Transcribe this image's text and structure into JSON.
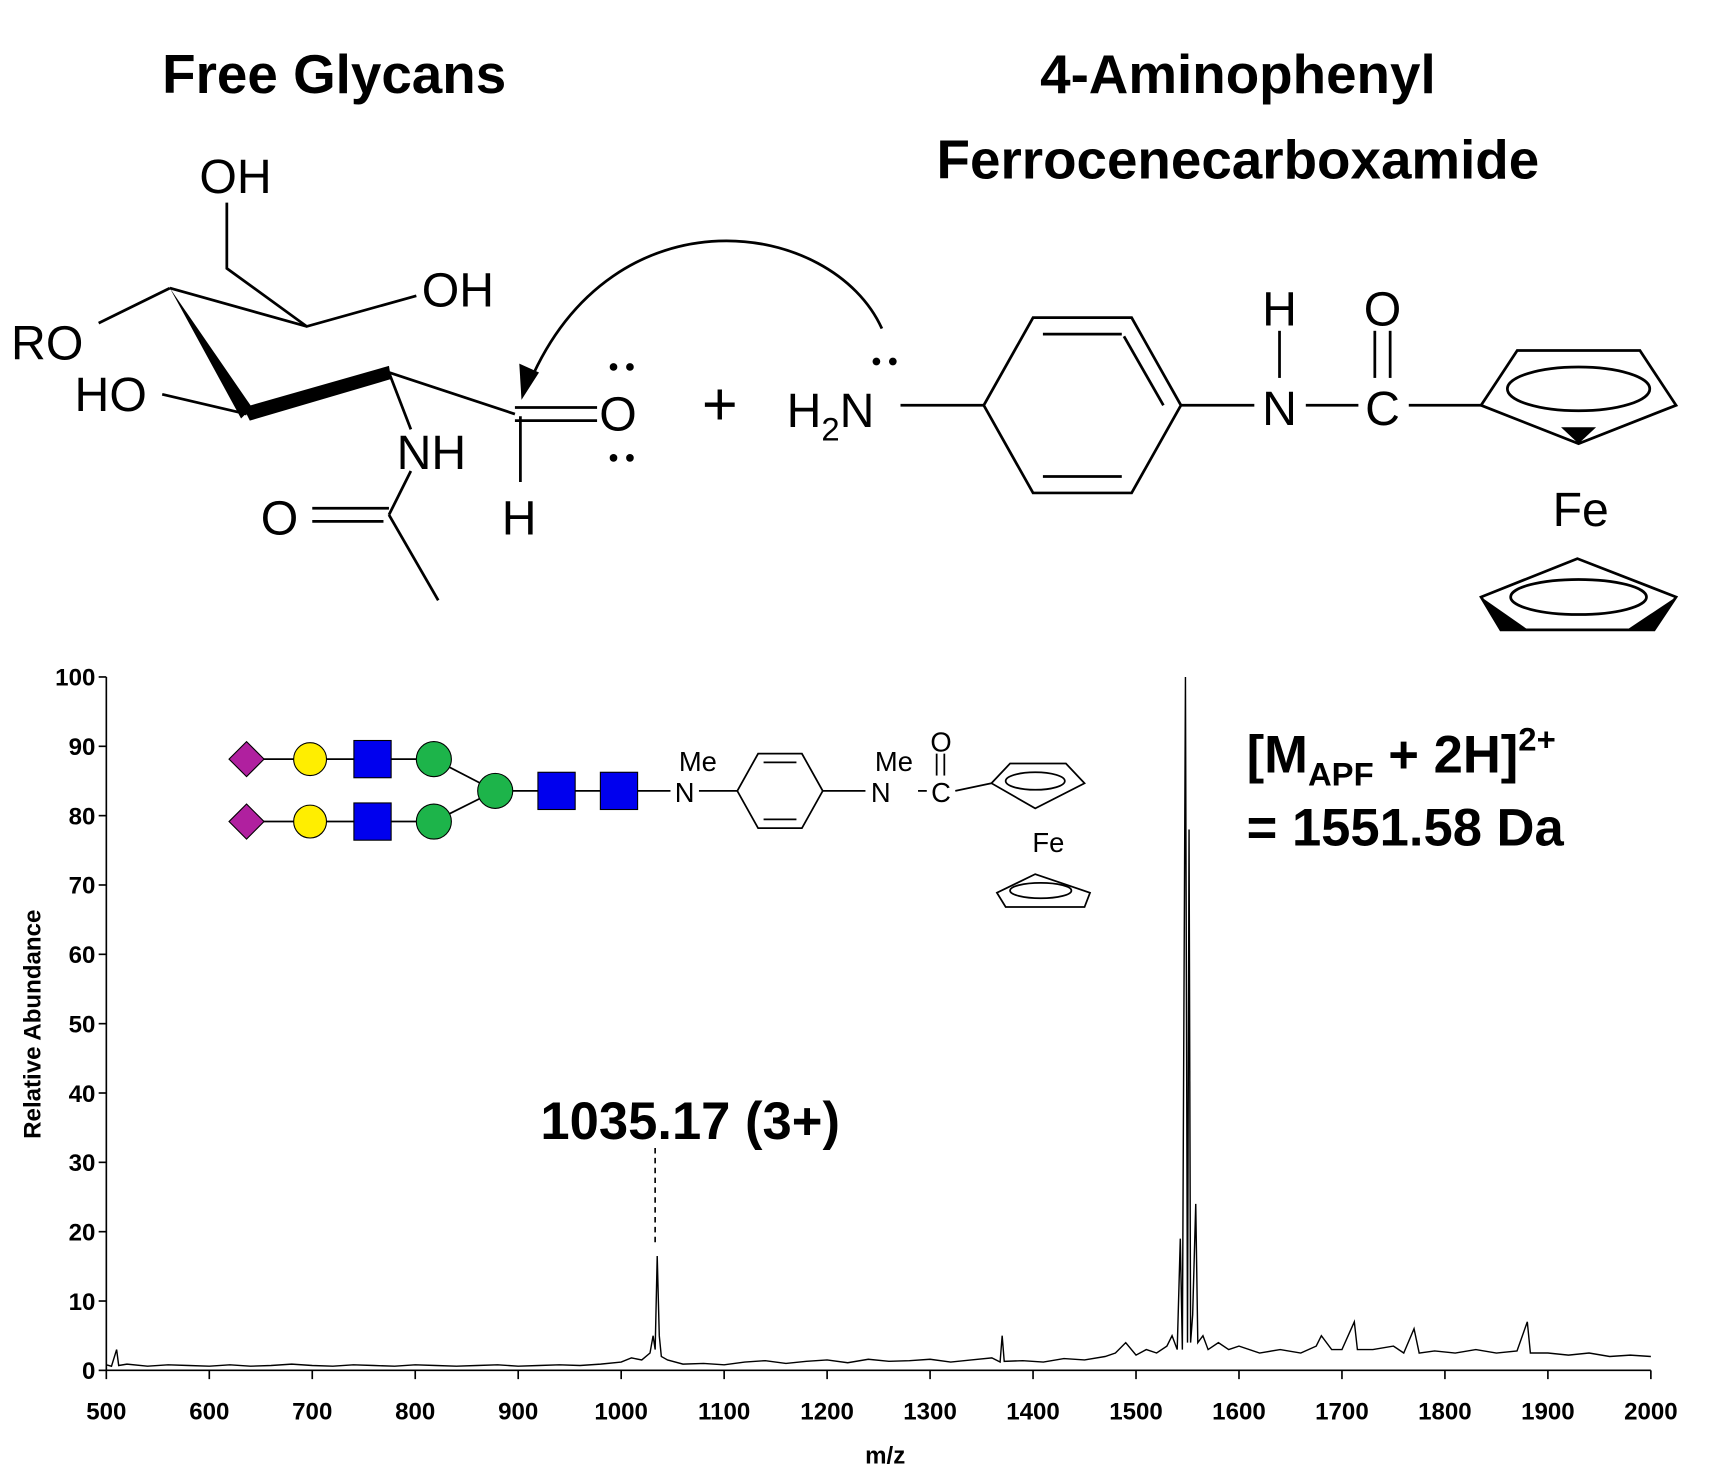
{
  "scheme": {
    "left_title": "Free Glycans",
    "right_title": [
      "4-Aminophenyl",
      "Ferrocenecarboxamide"
    ],
    "glycan_atoms": [
      "OH",
      "OH",
      "RO",
      "HO",
      "NH",
      "O",
      "H",
      "O"
    ],
    "plus": "+",
    "amine": [
      "H",
      "2",
      "N"
    ],
    "linker_atoms": [
      "H",
      "O",
      "N",
      "C"
    ],
    "iron": "Fe"
  },
  "chart_data": {
    "type": "line",
    "x_label": "m/z",
    "y_label": "Relative Abundance",
    "xlim": [
      500,
      2000
    ],
    "xticks": [
      500,
      600,
      700,
      800,
      900,
      1000,
      1100,
      1200,
      1300,
      1400,
      1500,
      1600,
      1700,
      1800,
      1900,
      2000
    ],
    "ylim": [
      0,
      100
    ],
    "yticks": [
      0,
      10,
      20,
      30,
      40,
      50,
      60,
      70,
      80,
      90,
      100
    ],
    "color": "#000000",
    "x": [
      500,
      505,
      510,
      512,
      520,
      540,
      560,
      580,
      600,
      620,
      640,
      660,
      680,
      700,
      720,
      740,
      760,
      780,
      800,
      820,
      840,
      860,
      880,
      900,
      920,
      940,
      960,
      980,
      1000,
      1010,
      1020,
      1028,
      1031,
      1033,
      1035,
      1037,
      1039,
      1045,
      1060,
      1080,
      1100,
      1120,
      1140,
      1160,
      1180,
      1200,
      1220,
      1240,
      1260,
      1280,
      1300,
      1320,
      1340,
      1360,
      1368,
      1370,
      1372,
      1390,
      1410,
      1430,
      1450,
      1470,
      1480,
      1490,
      1500,
      1510,
      1520,
      1530,
      1535,
      1540,
      1543,
      1545,
      1548,
      1550,
      1551.5,
      1553,
      1555,
      1558,
      1560,
      1565,
      1570,
      1580,
      1590,
      1600,
      1620,
      1640,
      1660,
      1675,
      1680,
      1690,
      1700,
      1712,
      1715,
      1730,
      1750,
      1760,
      1770,
      1775,
      1790,
      1810,
      1830,
      1850,
      1870,
      1880,
      1883,
      1900,
      1920,
      1940,
      1960,
      1980,
      2000
    ],
    "values": [
      0.8,
      0.6,
      3,
      0.7,
      0.9,
      0.6,
      0.8,
      0.7,
      0.6,
      0.8,
      0.6,
      0.7,
      0.9,
      0.7,
      0.6,
      0.8,
      0.7,
      0.6,
      0.8,
      0.7,
      0.6,
      0.7,
      0.8,
      0.6,
      0.7,
      0.8,
      0.7,
      0.9,
      1.2,
      1.8,
      1.5,
      2.5,
      5,
      3,
      16.5,
      5,
      2,
      1.5,
      0.9,
      1.0,
      0.8,
      1.2,
      1.4,
      1.0,
      1.3,
      1.5,
      1.1,
      1.6,
      1.3,
      1.4,
      1.6,
      1.2,
      1.5,
      1.8,
      1.2,
      5,
      1.3,
      1.4,
      1.2,
      1.7,
      1.5,
      2.0,
      2.5,
      4,
      2.2,
      3,
      2.5,
      3.5,
      5,
      3,
      19,
      3,
      100,
      4,
      78,
      4,
      8,
      24,
      4,
      5,
      3,
      4,
      3,
      3.5,
      2.5,
      3,
      2.5,
      3.5,
      5,
      3,
      3,
      7,
      3,
      3,
      3.5,
      2.5,
      6,
      2.5,
      2.8,
      2.5,
      3,
      2.5,
      2.8,
      7,
      2.5,
      2.5,
      2.2,
      2.5,
      2,
      2.2,
      2
    ],
    "annotations": [
      "1035.17 (3+)"
    ],
    "mass_label": {
      "base": "[M",
      "subscript": "APF",
      "middle": " + 2H]",
      "superscript": "2+",
      "second_line": "= 1551.58 Da"
    },
    "inset": {
      "atoms": [
        "Me",
        "N",
        "Me",
        "N",
        "O",
        "C",
        "Fe"
      ]
    }
  }
}
